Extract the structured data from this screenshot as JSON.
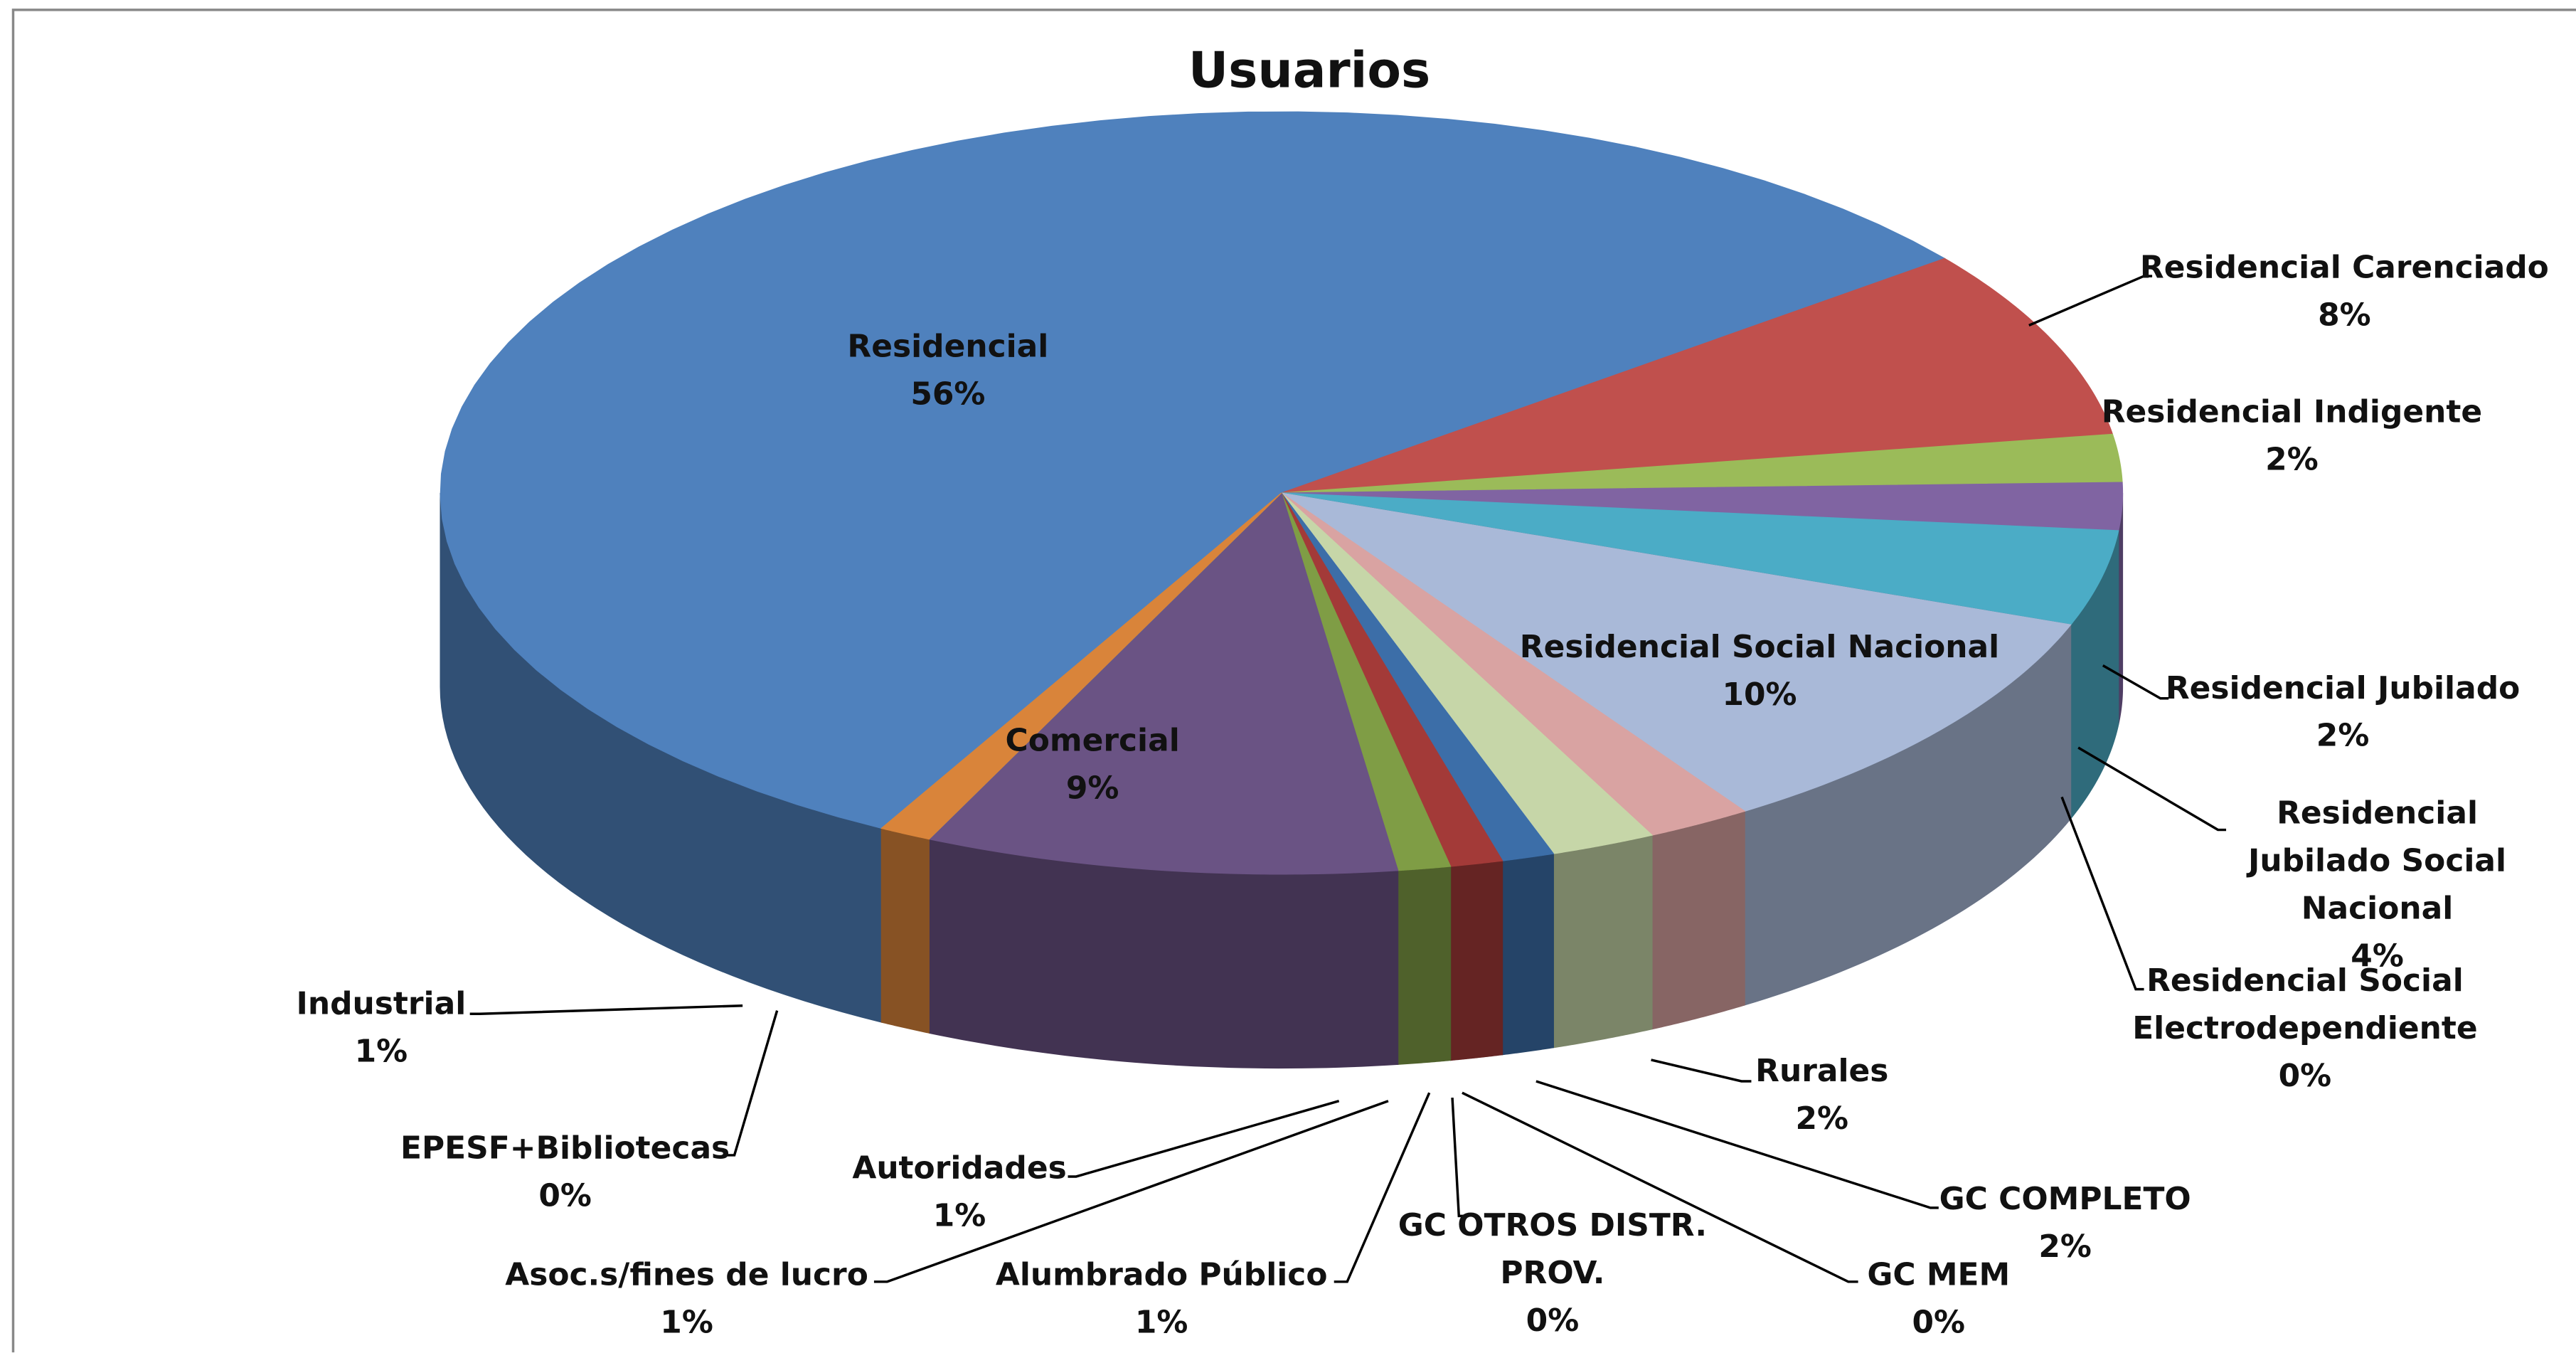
{
  "chart_data": {
    "type": "pie3d",
    "title": "Usuarios",
    "categories": [
      "Residencial",
      "Residencial Carenciado",
      "Residencial Indigente",
      "Residencial Jubilado",
      "Residencial Jubilado Social Nacional",
      "Residencial Social Electrodependiente",
      "Residencial Social Nacional",
      "Rurales",
      "GC COMPLETO",
      "GC MEM",
      "GC OTROS DISTR. PROV.",
      "Alumbrado Público",
      "Asoc.s/fines de lucro",
      "Autoridades",
      "Comercial",
      "EPESF+Bibliotecas",
      "Industrial"
    ],
    "values": [
      56,
      8,
      2,
      2,
      4,
      0,
      10,
      2,
      2,
      0,
      0,
      1,
      1,
      1,
      9,
      0,
      1
    ],
    "value_labels": [
      "56%",
      "8%",
      "2%",
      "2%",
      "4%",
      "0%",
      "10%",
      "2%",
      "2%",
      "0%",
      "0%",
      "1%",
      "1%",
      "1%",
      "9%",
      "0%",
      "1%"
    ],
    "colors": [
      "#4f81bd",
      "#c0504d",
      "#9bbb59",
      "#8064a2",
      "#4bacc6",
      "#1f5060",
      "#a9b9d8",
      "#d9a3a2",
      "#c6d6a8",
      "#b7a8cb",
      "#a6cce0",
      "#3c6ea8",
      "#a33a38",
      "#7f9d45",
      "#6a5384",
      "#3597b1",
      "#d9843a"
    ]
  }
}
